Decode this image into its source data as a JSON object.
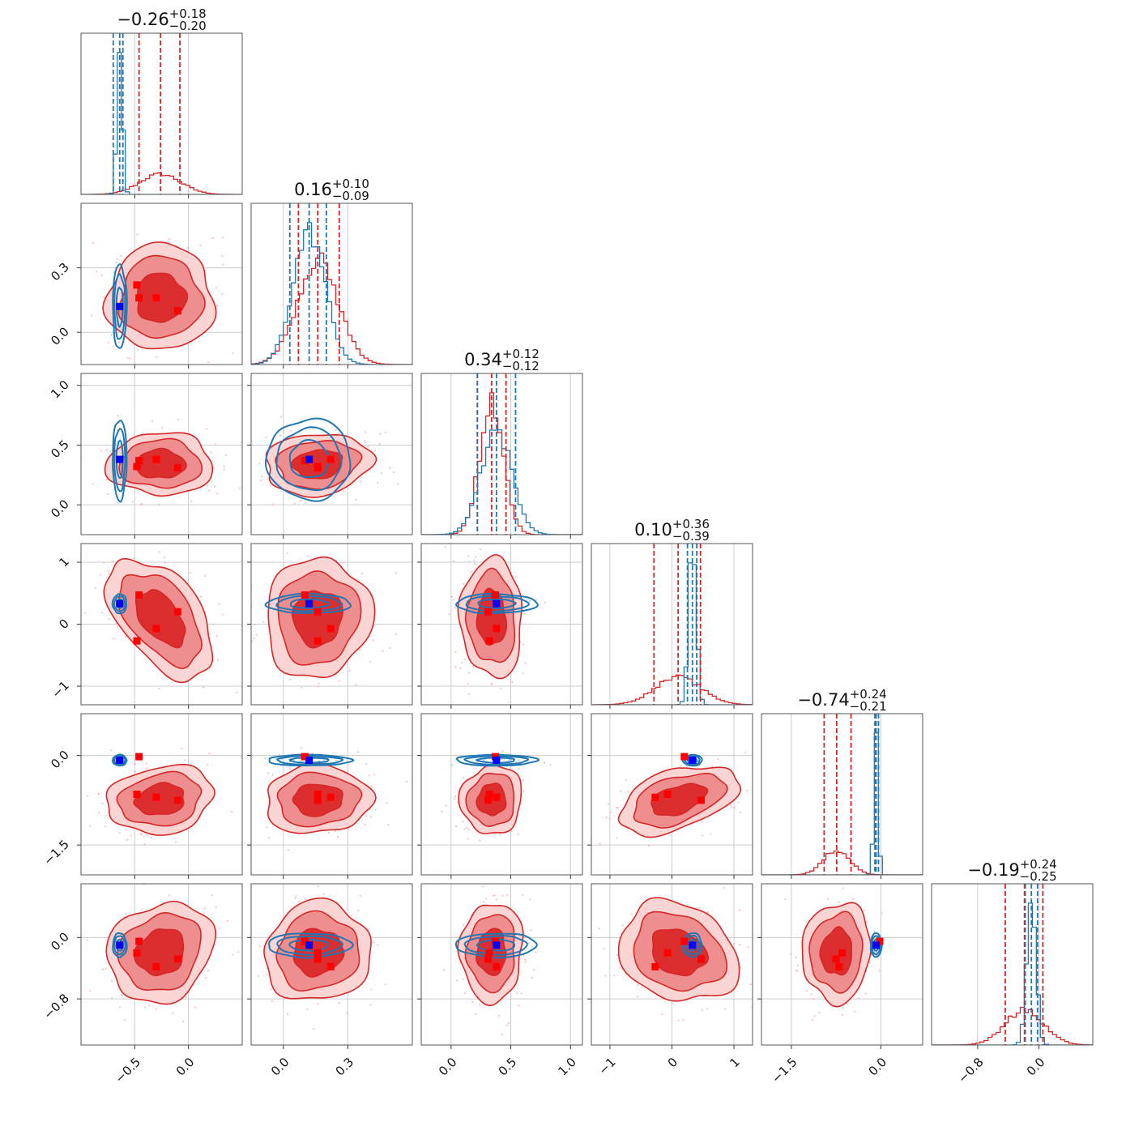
{
  "chart_data": {
    "type": "corner",
    "n_params": 6,
    "grid": true,
    "colors": {
      "red": "#d62728",
      "blue": "#1f77b4",
      "red_marker": "#ff0000",
      "blue_marker": "#0000ff"
    },
    "params": [
      {
        "range": [
          -1.0,
          0.5
        ],
        "ticks": [
          -0.5,
          0.0
        ],
        "tick_labels": [
          "−0.5",
          "0.0"
        ],
        "title": {
          "median": "−0.26",
          "plus": "+0.18",
          "minus": "−0.20"
        },
        "red": {
          "mean": -0.26,
          "sd": 0.19,
          "q": [
            -0.46,
            -0.26,
            -0.08
          ]
        },
        "blue": {
          "mean": -0.64,
          "sd": 0.025,
          "q": [
            -0.7,
            -0.64,
            -0.61
          ]
        },
        "truth_blue": -0.64,
        "truth_red": [
          -0.48,
          -0.46,
          -0.3,
          -0.1
        ]
      },
      {
        "range": [
          -0.15,
          0.6
        ],
        "ticks": [
          0.0,
          0.3
        ],
        "tick_labels": [
          "0.0",
          "0.3"
        ],
        "title": {
          "median": "0.16",
          "plus": "+0.10",
          "minus": "−0.09"
        },
        "red": {
          "mean": 0.16,
          "sd": 0.095,
          "q": [
            0.07,
            0.16,
            0.26
          ]
        },
        "blue": {
          "mean": 0.12,
          "sd": 0.075,
          "q": [
            0.03,
            0.12,
            0.2
          ]
        },
        "truth_blue": 0.12,
        "truth_red": [
          0.1,
          0.22,
          0.16,
          0.16
        ]
      },
      {
        "range": [
          -0.25,
          1.1
        ],
        "ticks": [
          0.0,
          0.5,
          1.0
        ],
        "tick_labels": [
          "0.0",
          "0.5",
          "1.0"
        ],
        "title": {
          "median": "0.34",
          "plus": "+0.12",
          "minus": "−0.12"
        },
        "red": {
          "mean": 0.34,
          "sd": 0.1,
          "q": [
            0.22,
            0.34,
            0.46
          ]
        },
        "blue": {
          "mean": 0.38,
          "sd": 0.13,
          "q": [
            0.22,
            0.38,
            0.54
          ]
        },
        "truth_blue": 0.38,
        "truth_red": [
          0.38,
          0.31,
          0.32,
          0.37
        ]
      },
      {
        "range": [
          -1.3,
          1.3
        ],
        "ticks": [
          -1,
          0,
          1
        ],
        "tick_labels": [
          "−1",
          "0",
          "1"
        ],
        "title": {
          "median": "0.10",
          "plus": "+0.36",
          "minus": "−0.39"
        },
        "red": {
          "mean": 0.1,
          "sd": 0.37,
          "q": [
            -0.29,
            0.1,
            0.46
          ]
        },
        "blue": {
          "mean": 0.33,
          "sd": 0.06,
          "q": [
            0.25,
            0.33,
            0.4
          ]
        },
        "truth_blue": 0.33,
        "truth_red": [
          0.47,
          -0.07,
          0.2,
          -0.27
        ]
      },
      {
        "range": [
          -2.0,
          0.7
        ],
        "ticks": [
          -1.5,
          0.0
        ],
        "tick_labels": [
          "−1.5",
          "0.0"
        ],
        "title": {
          "median": "−0.74",
          "plus": "+0.24",
          "minus": "−0.21"
        },
        "red": {
          "mean": -0.74,
          "sd": 0.22,
          "q": [
            -0.95,
            -0.74,
            -0.5
          ]
        },
        "blue": {
          "mean": -0.08,
          "sd": 0.035,
          "q": [
            -0.1,
            -0.08,
            -0.04
          ]
        },
        "truth_blue": -0.08,
        "truth_red": [
          -0.65,
          -0.02,
          -0.7,
          -0.75
        ]
      },
      {
        "range": [
          -1.4,
          0.7
        ],
        "ticks": [
          -0.8,
          0.0
        ],
        "tick_labels": [
          "−0.8",
          "0.0"
        ],
        "title": {
          "median": "−0.19",
          "plus": "+0.24",
          "minus": "−0.25"
        },
        "red": {
          "mean": -0.19,
          "sd": 0.25,
          "q": [
            -0.44,
            -0.19,
            0.05
          ]
        },
        "blue": {
          "mean": -0.1,
          "sd": 0.06,
          "q": [
            -0.18,
            -0.1,
            -0.02
          ]
        },
        "truth_blue": -0.1,
        "truth_red": [
          -0.28,
          -0.2,
          -0.05,
          -0.38
        ]
      }
    ],
    "correlations": {
      "1,0": 0.0,
      "2,0": 0.0,
      "2,1": 0.1,
      "3,0": -0.5,
      "3,1": 0.05,
      "3,2": -0.05,
      "4,0": 0.15,
      "4,1": 0.05,
      "4,2": 0.05,
      "4,3": 0.45,
      "5,0": 0.15,
      "5,1": 0.05,
      "5,2": 0.05,
      "5,3": -0.2,
      "5,4": 0.05
    },
    "contour_levels": [
      "1-sigma",
      "2-sigma",
      "3-sigma"
    ]
  }
}
